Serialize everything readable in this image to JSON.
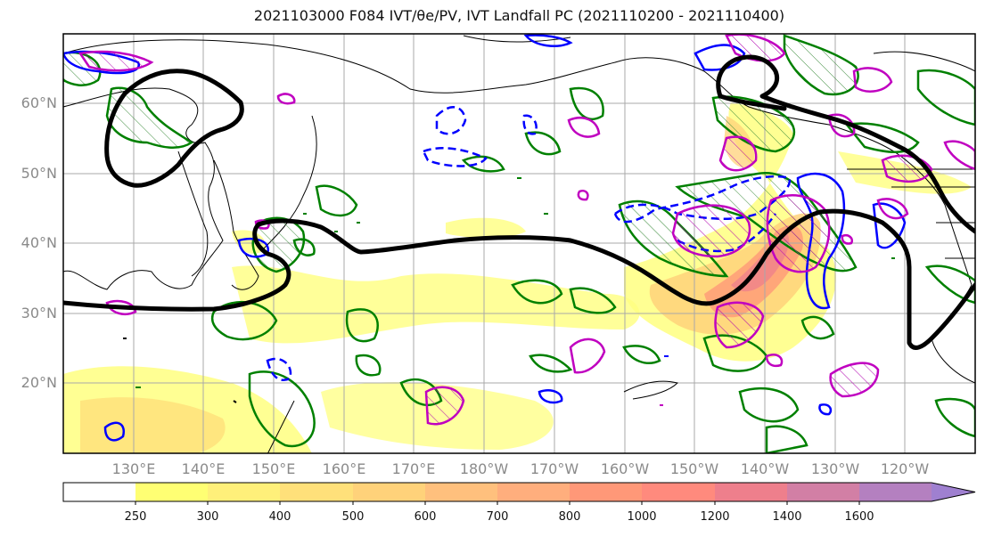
{
  "title": "2021103000 F084 IVT/θe/PV, IVT Landfall PC (2021110200 - 2021110400)",
  "lat_labels": [
    "60°N",
    "50°N",
    "40°N",
    "30°N",
    "20°N"
  ],
  "lon_labels": [
    "130°E",
    "140°E",
    "150°E",
    "160°E",
    "170°E",
    "180°W",
    "170°W",
    "160°W",
    "150°W",
    "140°W",
    "130°W",
    "120°W"
  ],
  "colorbar": {
    "ticks": [
      "250",
      "300",
      "400",
      "500",
      "600",
      "700",
      "800",
      "1000",
      "1200",
      "1400",
      "1600"
    ],
    "colors": [
      "#ffffff",
      "#ffff73",
      "#fff07a",
      "#ffe07a",
      "#ffd27a",
      "#ffc07d",
      "#ffae7d",
      "#ff9878",
      "#ff8a7d",
      "#ee7f8c",
      "#d27fa5",
      "#b480c0",
      "#9f80d0"
    ]
  },
  "legend_colors": {
    "theta_e_contour": "#008000",
    "pv_positive": "#0000ff",
    "pv_negative_dashed": "#0000ff",
    "ivt_magenta": "#c000c0",
    "landfall_pc_outline": "#000000"
  },
  "map_extent": {
    "lon_west": 120,
    "lon_east": 250,
    "lat_south": 10,
    "lat_north": 70
  }
}
